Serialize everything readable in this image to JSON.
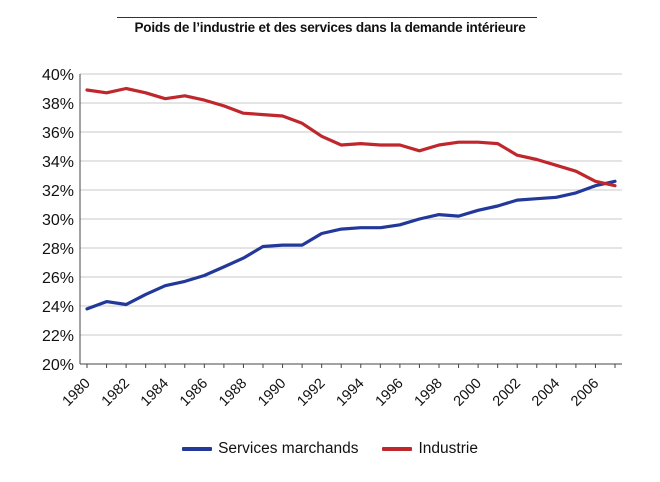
{
  "chart_data": {
    "type": "line",
    "title": "Poids de l’industrie et des services dans la demande intérieure",
    "x": [
      1980,
      1981,
      1982,
      1983,
      1984,
      1985,
      1986,
      1987,
      1988,
      1989,
      1990,
      1991,
      1992,
      1993,
      1994,
      1995,
      1996,
      1997,
      1998,
      1999,
      2000,
      2001,
      2002,
      2003,
      2004,
      2005,
      2006,
      2007
    ],
    "xticks": [
      "1980",
      "1982",
      "1984",
      "1986",
      "1988",
      "1990",
      "1992",
      "1994",
      "1996",
      "1998",
      "2000",
      "2002",
      "2004",
      "2006"
    ],
    "ylim": [
      20,
      40
    ],
    "yticks": [
      "20%",
      "22%",
      "24%",
      "26%",
      "28%",
      "30%",
      "32%",
      "34%",
      "36%",
      "38%",
      "40%"
    ],
    "grid": true,
    "legend": "bottom",
    "series": [
      {
        "name": "Services marchands",
        "color": "#22399a",
        "values": [
          23.8,
          24.3,
          24.1,
          24.8,
          25.4,
          25.7,
          26.1,
          26.7,
          27.3,
          28.1,
          28.2,
          28.2,
          29.0,
          29.3,
          29.4,
          29.4,
          29.6,
          30.0,
          30.3,
          30.2,
          30.6,
          30.9,
          31.3,
          31.4,
          31.5,
          31.8,
          32.3,
          32.6
        ]
      },
      {
        "name": "Industrie",
        "color": "#c0272d",
        "values": [
          38.9,
          38.7,
          39.0,
          38.7,
          38.3,
          38.5,
          38.2,
          37.8,
          37.3,
          37.2,
          37.1,
          36.6,
          35.7,
          35.1,
          35.2,
          35.1,
          35.1,
          34.7,
          35.1,
          35.3,
          35.3,
          35.2,
          34.4,
          34.1,
          33.7,
          33.3,
          32.6,
          32.3
        ]
      }
    ]
  }
}
